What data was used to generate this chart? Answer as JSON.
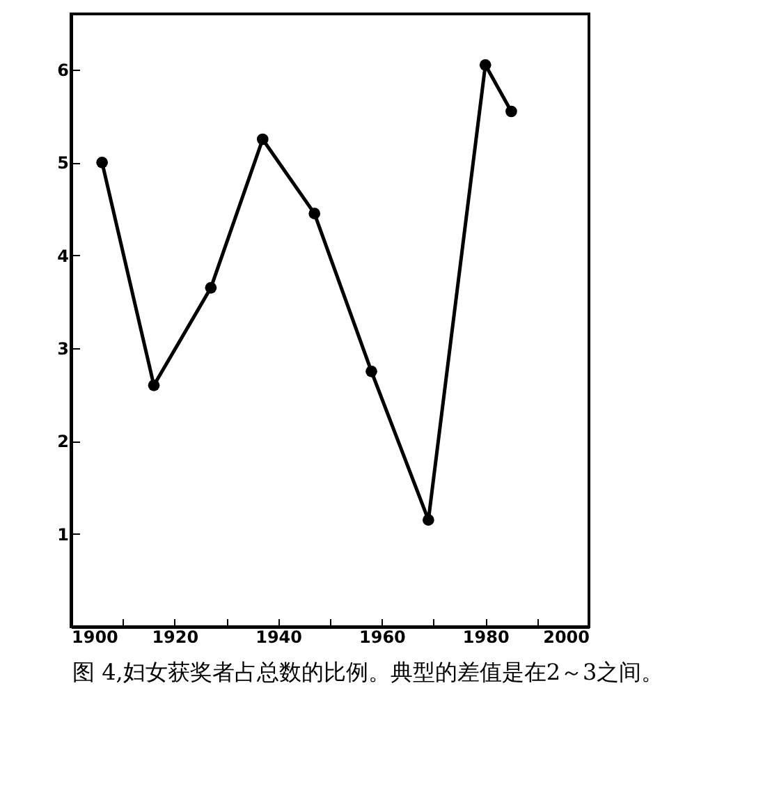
{
  "chart_data": {
    "type": "line",
    "x": [
      1906,
      1916,
      1927,
      1937,
      1947,
      1958,
      1969,
      1980,
      1985
    ],
    "series": [
      {
        "color": "#000000",
        "values": [
          5.0,
          2.6,
          3.65,
          5.25,
          4.45,
          2.75,
          1.15,
          6.05,
          5.55
        ]
      }
    ],
    "xlim": [
      1900,
      2000
    ],
    "xticks": [
      1900,
      {
        "value": 1910,
        "label": null
      },
      1920,
      {
        "value": 1930,
        "label": null
      },
      1940,
      {
        "value": 1950,
        "label": null
      },
      1960,
      {
        "value": 1970,
        "label": null
      },
      1980,
      {
        "value": 1990,
        "label": null
      },
      2000
    ],
    "ylim": [
      0,
      6.6
    ],
    "yticks": [
      1,
      2,
      3,
      4,
      5,
      6
    ],
    "marker": "circle",
    "grid": false,
    "annotations": [
      "图 4,妇女获奖者占总数的比例。典型的差值是在2～3之间。"
    ]
  }
}
